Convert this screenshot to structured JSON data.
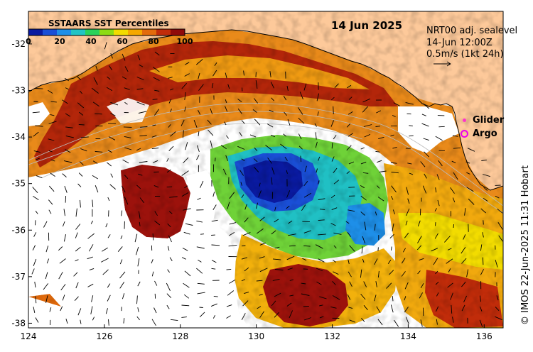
{
  "title": "14 Jun 2025",
  "legend": {
    "title": "SSTAARS SST Percentiles",
    "ticks": [
      "0",
      "20",
      "40",
      "60",
      "80",
      "100"
    ],
    "colors": [
      "#0a1aa0",
      "#1a4fd6",
      "#1e8fe8",
      "#22c4c4",
      "#2ad25a",
      "#8cdc14",
      "#f2dc00",
      "#f5a800",
      "#e36b0c",
      "#c12c0a",
      "#8f0a0a"
    ]
  },
  "info": {
    "line1": "NRT00 adj. sealevel",
    "line2": "14-Jun 12:00Z",
    "line3": "0.5m/s (1kt 24h)"
  },
  "markers": {
    "glider": "Glider",
    "argo": "Argo"
  },
  "axes": {
    "x_ticks": [
      "124",
      "126",
      "128",
      "130",
      "132",
      "134",
      "136"
    ],
    "y_ticks": [
      "-32",
      "-33",
      "-34",
      "-35",
      "-36",
      "-37",
      "-38"
    ],
    "lon_range": [
      124,
      136.5
    ],
    "lat_range": [
      -38.1,
      -31.3
    ]
  },
  "credit": "© IMOS 22-Jun-2025 11:31 Hobart",
  "colors": {
    "land": "#fdc99a",
    "coast": "#000000",
    "vectors": "#000000"
  }
}
